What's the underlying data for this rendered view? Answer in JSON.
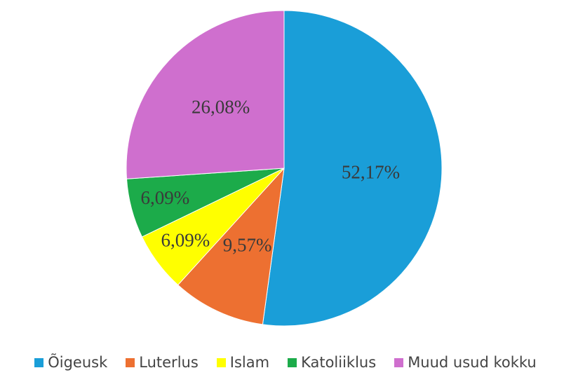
{
  "chart_data": {
    "type": "pie",
    "categories": [
      "Õigeusk",
      "Luterlus",
      "Islam",
      "Katoliiklus",
      "Muud usud kokku"
    ],
    "values": [
      52.17,
      9.57,
      6.09,
      6.09,
      26.08
    ],
    "value_labels": [
      "52,17%",
      "9,57%",
      "6,09%",
      "6,09%",
      "26,08%"
    ],
    "colors": [
      "#1a9ed8",
      "#ed7031",
      "#ffff00",
      "#1cab4a",
      "#cf6fce"
    ],
    "legend": "bottom"
  }
}
